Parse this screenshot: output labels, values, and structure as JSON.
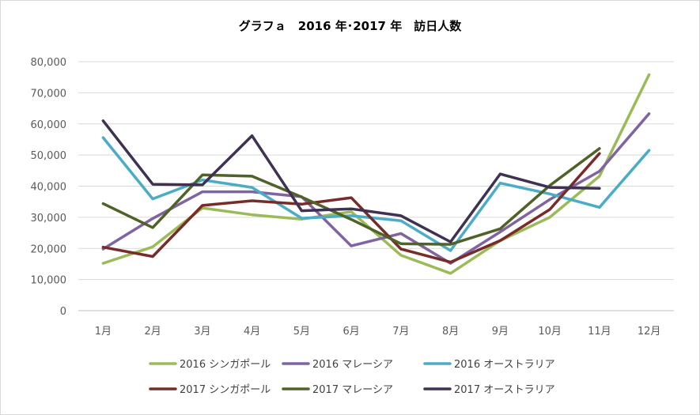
{
  "chart_data": {
    "type": "line",
    "title": "グラフａ　2016 年･2017 年　訪日人数",
    "categories": [
      "1月",
      "2月",
      "3月",
      "4月",
      "5月",
      "6月",
      "7月",
      "8月",
      "9月",
      "10月",
      "11月",
      "12月"
    ],
    "ylim": [
      0,
      80000
    ],
    "yticks": [
      "0",
      "10,000",
      "20,000",
      "30,000",
      "40,000",
      "50,000",
      "60,000",
      "70,000",
      "80,000"
    ],
    "yticks_values": [
      0,
      10000,
      20000,
      30000,
      40000,
      50000,
      60000,
      70000,
      80000
    ],
    "grid": true,
    "legend_position": "bottom",
    "series": [
      {
        "name": "2016 シンガポール",
        "color": "#9bbb59",
        "values": [
          15200,
          20500,
          33000,
          30800,
          29400,
          31800,
          17800,
          12000,
          22500,
          30000,
          43200,
          75800
        ]
      },
      {
        "name": "2016 マレーシア",
        "color": "#8064a2",
        "values": [
          19800,
          29600,
          38200,
          38200,
          36600,
          20800,
          24800,
          15200,
          25300,
          35700,
          44800,
          63300
        ]
      },
      {
        "name": "2016 オーストラリア",
        "color": "#4bacc6",
        "values": [
          55600,
          35900,
          42000,
          39600,
          29700,
          30500,
          28900,
          19300,
          41000,
          37500,
          33200,
          51500
        ]
      },
      {
        "name": "2017 シンガポール",
        "color": "#772c2a",
        "values": [
          20400,
          17400,
          33800,
          35300,
          34200,
          36300,
          19800,
          15600,
          22500,
          32500,
          50500,
          null
        ]
      },
      {
        "name": "2017 マレーシア",
        "color": "#4f6228",
        "values": [
          34400,
          26700,
          43600,
          43200,
          36500,
          29300,
          21500,
          21300,
          26300,
          40200,
          52100,
          null
        ]
      },
      {
        "name": "2017 オーストラリア",
        "color": "#3f3151",
        "values": [
          61000,
          40600,
          40400,
          56200,
          32100,
          32700,
          30500,
          22100,
          43900,
          39600,
          39300,
          null
        ]
      }
    ]
  }
}
